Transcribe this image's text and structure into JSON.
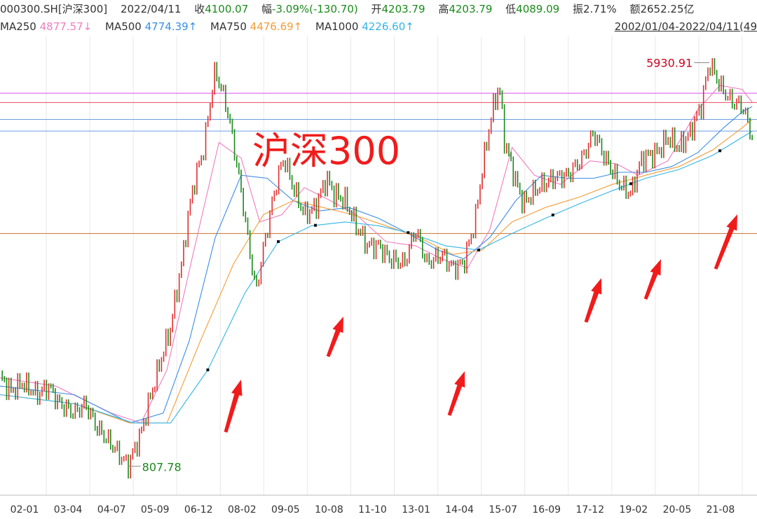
{
  "header": {
    "code": "000300.SH[沪深300]",
    "date": "2022/04/11",
    "close_label": "收",
    "close_value": "4100.07",
    "change_label": "幅",
    "change_value": "-3.09%(-130.70)",
    "open_label": "开",
    "open_value": "4203.79",
    "high_label": "高",
    "high_value": "4203.79",
    "low_label": "低",
    "low_value": "4089.09",
    "amplitude_label": "振",
    "amplitude_value": "2.71%",
    "amount_label": "额",
    "amount_value": "2652.25亿"
  },
  "ma": [
    {
      "label": "MA250",
      "value": "4877.57↓",
      "color": "#f07cc0"
    },
    {
      "label": "MA500",
      "value": "4774.39↑",
      "color": "#3a8ee6"
    },
    {
      "label": "MA750",
      "value": "4476.69↑",
      "color": "#f39c38"
    },
    {
      "label": "MA1000",
      "value": "4226.60↑",
      "color": "#33b5e5"
    }
  ],
  "date_range": "2002/01/04-2022/04/11(49",
  "overlay_title": "沪深300",
  "colors": {
    "up": "#e03030",
    "down": "#1a8a1a",
    "arrow": "#f01c1c",
    "text_red": "#d0021b"
  },
  "chart_data": {
    "type": "line",
    "title": "沪深300",
    "x_tick_labels": [
      "02-01",
      "03-04",
      "04-07",
      "05-09",
      "06-12",
      "08-02",
      "09-05",
      "10-08",
      "11-10",
      "13-01",
      "14-04",
      "15-07",
      "16-09",
      "17-12",
      "19-02",
      "20-05",
      "21-08"
    ],
    "annotations": [
      {
        "text": "5930.91",
        "kind": "high",
        "x": 2021.12,
        "y": 5930.91
      },
      {
        "text": "807.78",
        "kind": "low",
        "x": 2005.45,
        "y": 807.78
      }
    ],
    "horizontal_lines": [
      {
        "y": 5100,
        "color": "#dd4ff0"
      },
      {
        "y": 4870,
        "color": "#e84a5f"
      },
      {
        "y": 4480,
        "color": "#6a9ee6"
      },
      {
        "y": 4230,
        "color": "#6a9ee6"
      },
      {
        "y": 2550,
        "color": "#c87030"
      }
    ],
    "ylim": [
      700,
      6300
    ],
    "xlim": [
      2002.0,
      2022.4
    ],
    "series": [
      {
        "kind": "index",
        "x": [
          2002.0,
          2002.3,
          2002.6,
          2003.0,
          2003.3,
          2003.6,
          2004.0,
          2004.3,
          2004.6,
          2005.0,
          2005.45,
          2005.8,
          2006.2,
          2006.6,
          2006.9,
          2007.2,
          2007.5,
          2007.8,
          2008.1,
          2008.4,
          2008.7,
          2008.9,
          2009.2,
          2009.5,
          2009.65,
          2009.9,
          2010.2,
          2010.5,
          2010.8,
          2011.0,
          2011.3,
          2011.6,
          2011.9,
          2012.2,
          2012.5,
          2012.9,
          2013.2,
          2013.5,
          2013.9,
          2014.2,
          2014.5,
          2014.8,
          2015.0,
          2015.3,
          2015.45,
          2015.6,
          2015.9,
          2016.1,
          2016.5,
          2016.9,
          2017.3,
          2017.7,
          2018.0,
          2018.3,
          2018.7,
          2019.0,
          2019.3,
          2019.7,
          2020.0,
          2020.3,
          2020.6,
          2020.9,
          2021.12,
          2021.4,
          2021.7,
          2022.0,
          2022.27
        ],
        "y": [
          1250,
          1170,
          1220,
          1150,
          1200,
          1100,
          1050,
          1100,
          980,
          900,
          807.78,
          950,
          1250,
          1600,
          2200,
          3200,
          3900,
          5700,
          4800,
          3500,
          2400,
          1900,
          2600,
          3400,
          3700,
          3200,
          2800,
          2900,
          3350,
          3100,
          3000,
          2650,
          2400,
          2400,
          2250,
          2200,
          2600,
          2200,
          2300,
          2150,
          2200,
          2700,
          3500,
          4800,
          5300,
          4000,
          3300,
          2950,
          3200,
          3350,
          3400,
          3700,
          4200,
          3700,
          3250,
          3100,
          3700,
          3800,
          4100,
          3900,
          4200,
          4800,
          5930.91,
          5300,
          4900,
          4800,
          4100.07
        ]
      },
      {
        "name": "MA250",
        "color": "#f07cc0",
        "x": [
          2002.0,
          2003.5,
          2005.0,
          2005.8,
          2006.5,
          2007.2,
          2007.9,
          2008.5,
          2009.0,
          2009.6,
          2010.2,
          2010.9,
          2011.6,
          2012.4,
          2013.2,
          2013.9,
          2014.6,
          2015.2,
          2015.8,
          2016.4,
          2017.1,
          2017.9,
          2018.6,
          2019.2,
          2020.0,
          2020.8,
          2021.4,
          2022.0,
          2022.27
        ],
        "y": [
          1250,
          1200,
          1050,
          1000,
          1300,
          2300,
          4000,
          3700,
          2700,
          2800,
          3200,
          3000,
          2800,
          2450,
          2400,
          2250,
          2150,
          2600,
          3900,
          3400,
          3250,
          3650,
          3600,
          3400,
          3650,
          4700,
          5300,
          5200,
          4877.57
        ]
      },
      {
        "name": "MA500",
        "color": "#3a8ee6",
        "x": [
          2002.0,
          2004.0,
          2005.5,
          2006.4,
          2007.1,
          2007.8,
          2008.5,
          2009.2,
          2009.9,
          2010.6,
          2011.4,
          2012.2,
          2013.0,
          2013.8,
          2014.5,
          2015.2,
          2015.9,
          2016.6,
          2017.3,
          2018.0,
          2018.7,
          2019.4,
          2020.1,
          2020.8,
          2021.5,
          2022.0,
          2022.27
        ],
        "y": [
          1200,
          1150,
          1000,
          1050,
          1500,
          2500,
          3400,
          3350,
          3000,
          2850,
          2900,
          2750,
          2550,
          2350,
          2250,
          2500,
          3000,
          3400,
          3350,
          3350,
          3450,
          3450,
          3550,
          3800,
          4300,
          4650,
          4774.39
        ]
      },
      {
        "name": "MA750",
        "color": "#f39c38",
        "x": [
          2002.0,
          2004.0,
          2005.5,
          2006.5,
          2007.4,
          2008.3,
          2009.1,
          2009.9,
          2010.7,
          2011.5,
          2012.4,
          2013.3,
          2014.2,
          2015.0,
          2015.8,
          2016.7,
          2017.6,
          2018.5,
          2019.4,
          2020.3,
          2021.2,
          2022.0,
          2022.27
        ],
        "y": [
          1150,
          1100,
          1000,
          1000,
          1500,
          2200,
          2800,
          3000,
          2900,
          2800,
          2650,
          2500,
          2300,
          2350,
          2700,
          2900,
          3050,
          3250,
          3400,
          3550,
          3850,
          4300,
          4476.69
        ]
      },
      {
        "name": "MA1000",
        "color": "#33b5e5",
        "x": [
          2002.0,
          2004.0,
          2005.6,
          2006.6,
          2007.6,
          2008.6,
          2009.5,
          2010.4,
          2011.3,
          2012.2,
          2013.1,
          2014.0,
          2014.9,
          2015.8,
          2016.7,
          2017.6,
          2018.5,
          2019.4,
          2020.3,
          2021.2,
          2022.0,
          2022.27
        ],
        "y": [
          1150,
          1100,
          1000,
          1000,
          1300,
          1900,
          2450,
          2650,
          2700,
          2650,
          2550,
          2400,
          2350,
          2550,
          2750,
          2950,
          3150,
          3350,
          3500,
          3750,
          4100,
          4226.6
        ]
      }
    ]
  }
}
